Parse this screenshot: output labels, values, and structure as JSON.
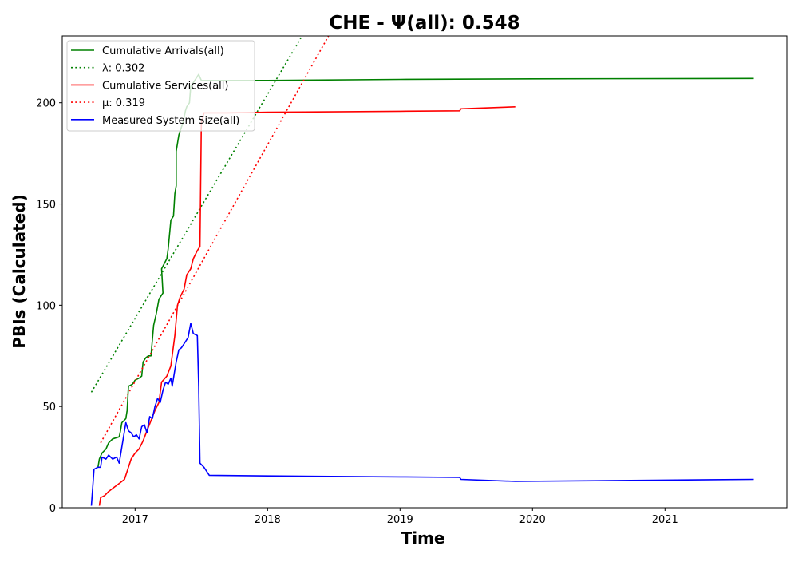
{
  "chart_data": {
    "type": "line",
    "title": "CHE -  Ψ(all): 0.548",
    "xlabel": "Time",
    "ylabel": "PBIs (Calculated)",
    "xlim": [
      2016.45,
      2021.92
    ],
    "ylim": [
      0,
      233
    ],
    "x_ticks": [
      2017,
      2018,
      2019,
      2020,
      2021
    ],
    "x_tick_labels": [
      "2017",
      "2018",
      "2019",
      "2020",
      "2021"
    ],
    "y_ticks": [
      0,
      50,
      100,
      150,
      200
    ],
    "y_tick_labels": [
      "0",
      "50",
      "100",
      "150",
      "200"
    ],
    "grid": false,
    "legend_position": "top-left",
    "series": [
      {
        "name": "Cumulative Arrivals(all)",
        "color": "#008000",
        "style": "solid",
        "points": [
          [
            2016.72,
            20
          ],
          [
            2016.73,
            24
          ],
          [
            2016.75,
            27
          ],
          [
            2016.78,
            29
          ],
          [
            2016.8,
            32
          ],
          [
            2016.83,
            34
          ],
          [
            2016.88,
            35
          ],
          [
            2016.89,
            38
          ],
          [
            2016.9,
            42
          ],
          [
            2016.93,
            44
          ],
          [
            2016.94,
            48
          ],
          [
            2016.95,
            60
          ],
          [
            2016.98,
            61
          ],
          [
            2017.0,
            63
          ],
          [
            2017.03,
            64
          ],
          [
            2017.05,
            65
          ],
          [
            2017.06,
            72
          ],
          [
            2017.08,
            74
          ],
          [
            2017.1,
            75
          ],
          [
            2017.12,
            75
          ],
          [
            2017.14,
            90
          ],
          [
            2017.16,
            96
          ],
          [
            2017.18,
            103
          ],
          [
            2017.2,
            105
          ],
          [
            2017.21,
            106
          ],
          [
            2017.2,
            118
          ],
          [
            2017.24,
            123
          ],
          [
            2017.25,
            128
          ],
          [
            2017.27,
            142
          ],
          [
            2017.29,
            144
          ],
          [
            2017.3,
            155
          ],
          [
            2017.31,
            159
          ],
          [
            2017.31,
            176
          ],
          [
            2017.33,
            184
          ],
          [
            2017.35,
            188
          ],
          [
            2017.36,
            190
          ],
          [
            2017.38,
            196
          ],
          [
            2017.39,
            198
          ],
          [
            2017.41,
            200
          ],
          [
            2017.42,
            208
          ],
          [
            2017.44,
            210
          ],
          [
            2017.46,
            212
          ],
          [
            2017.48,
            214
          ],
          [
            2017.5,
            211
          ],
          [
            2018.0,
            211
          ],
          [
            2019.0,
            211.5
          ],
          [
            2020.0,
            211.8
          ],
          [
            2021.67,
            212
          ]
        ]
      },
      {
        "name": "λ: 0.302",
        "color": "#008000",
        "style": "dotted",
        "points": [
          [
            2016.67,
            57
          ],
          [
            2018.26,
            233
          ]
        ]
      },
      {
        "name": "Cumulative Services(all)",
        "color": "#ff0000",
        "style": "solid",
        "points": [
          [
            2016.73,
            1
          ],
          [
            2016.74,
            5
          ],
          [
            2016.77,
            6
          ],
          [
            2016.8,
            8
          ],
          [
            2016.84,
            10
          ],
          [
            2016.88,
            12
          ],
          [
            2016.92,
            14
          ],
          [
            2016.95,
            20
          ],
          [
            2016.97,
            24
          ],
          [
            2017.0,
            27
          ],
          [
            2017.03,
            29
          ],
          [
            2017.06,
            33
          ],
          [
            2017.09,
            38
          ],
          [
            2017.12,
            43
          ],
          [
            2017.15,
            48
          ],
          [
            2017.18,
            52
          ],
          [
            2017.2,
            62
          ],
          [
            2017.24,
            65
          ],
          [
            2017.27,
            70
          ],
          [
            2017.3,
            85
          ],
          [
            2017.32,
            100
          ],
          [
            2017.34,
            104
          ],
          [
            2017.37,
            108
          ],
          [
            2017.39,
            115
          ],
          [
            2017.42,
            118
          ],
          [
            2017.44,
            123
          ],
          [
            2017.47,
            127
          ],
          [
            2017.49,
            129
          ],
          [
            2017.5,
            190
          ],
          [
            2017.52,
            195
          ],
          [
            2017.7,
            195
          ],
          [
            2018.0,
            195.3
          ],
          [
            2019.0,
            195.8
          ],
          [
            2019.45,
            196
          ],
          [
            2019.46,
            197
          ],
          [
            2019.87,
            198
          ]
        ]
      },
      {
        "name": "μ: 0.319",
        "color": "#ff0000",
        "style": "dotted",
        "points": [
          [
            2016.74,
            32
          ],
          [
            2018.46,
            233
          ]
        ]
      },
      {
        "name": "Measured System Size(all)",
        "color": "#0000ff",
        "style": "solid",
        "points": [
          [
            2016.67,
            1
          ],
          [
            2016.68,
            10
          ],
          [
            2016.69,
            19
          ],
          [
            2016.72,
            20
          ],
          [
            2016.74,
            20
          ],
          [
            2016.75,
            25
          ],
          [
            2016.78,
            24
          ],
          [
            2016.8,
            26
          ],
          [
            2016.83,
            24
          ],
          [
            2016.86,
            25
          ],
          [
            2016.88,
            22
          ],
          [
            2016.9,
            30
          ],
          [
            2016.93,
            42
          ],
          [
            2016.95,
            38
          ],
          [
            2016.97,
            37
          ],
          [
            2016.99,
            35
          ],
          [
            2017.01,
            36
          ],
          [
            2017.03,
            34
          ],
          [
            2017.05,
            40
          ],
          [
            2017.07,
            41
          ],
          [
            2017.09,
            37
          ],
          [
            2017.11,
            45
          ],
          [
            2017.13,
            44
          ],
          [
            2017.15,
            50
          ],
          [
            2017.17,
            54
          ],
          [
            2017.19,
            52
          ],
          [
            2017.21,
            58
          ],
          [
            2017.23,
            62
          ],
          [
            2017.25,
            61
          ],
          [
            2017.27,
            64
          ],
          [
            2017.28,
            60
          ],
          [
            2017.3,
            68
          ],
          [
            2017.31,
            72
          ],
          [
            2017.33,
            78
          ],
          [
            2017.35,
            79
          ],
          [
            2017.36,
            80
          ],
          [
            2017.38,
            82
          ],
          [
            2017.4,
            84
          ],
          [
            2017.42,
            91
          ],
          [
            2017.44,
            86
          ],
          [
            2017.47,
            85
          ],
          [
            2017.48,
            60
          ],
          [
            2017.49,
            22
          ],
          [
            2017.52,
            20
          ],
          [
            2017.56,
            16
          ],
          [
            2018.0,
            15.7
          ],
          [
            2019.0,
            15.2
          ],
          [
            2019.45,
            15
          ],
          [
            2019.46,
            14
          ],
          [
            2019.87,
            13
          ],
          [
            2021.67,
            14
          ]
        ]
      }
    ]
  }
}
